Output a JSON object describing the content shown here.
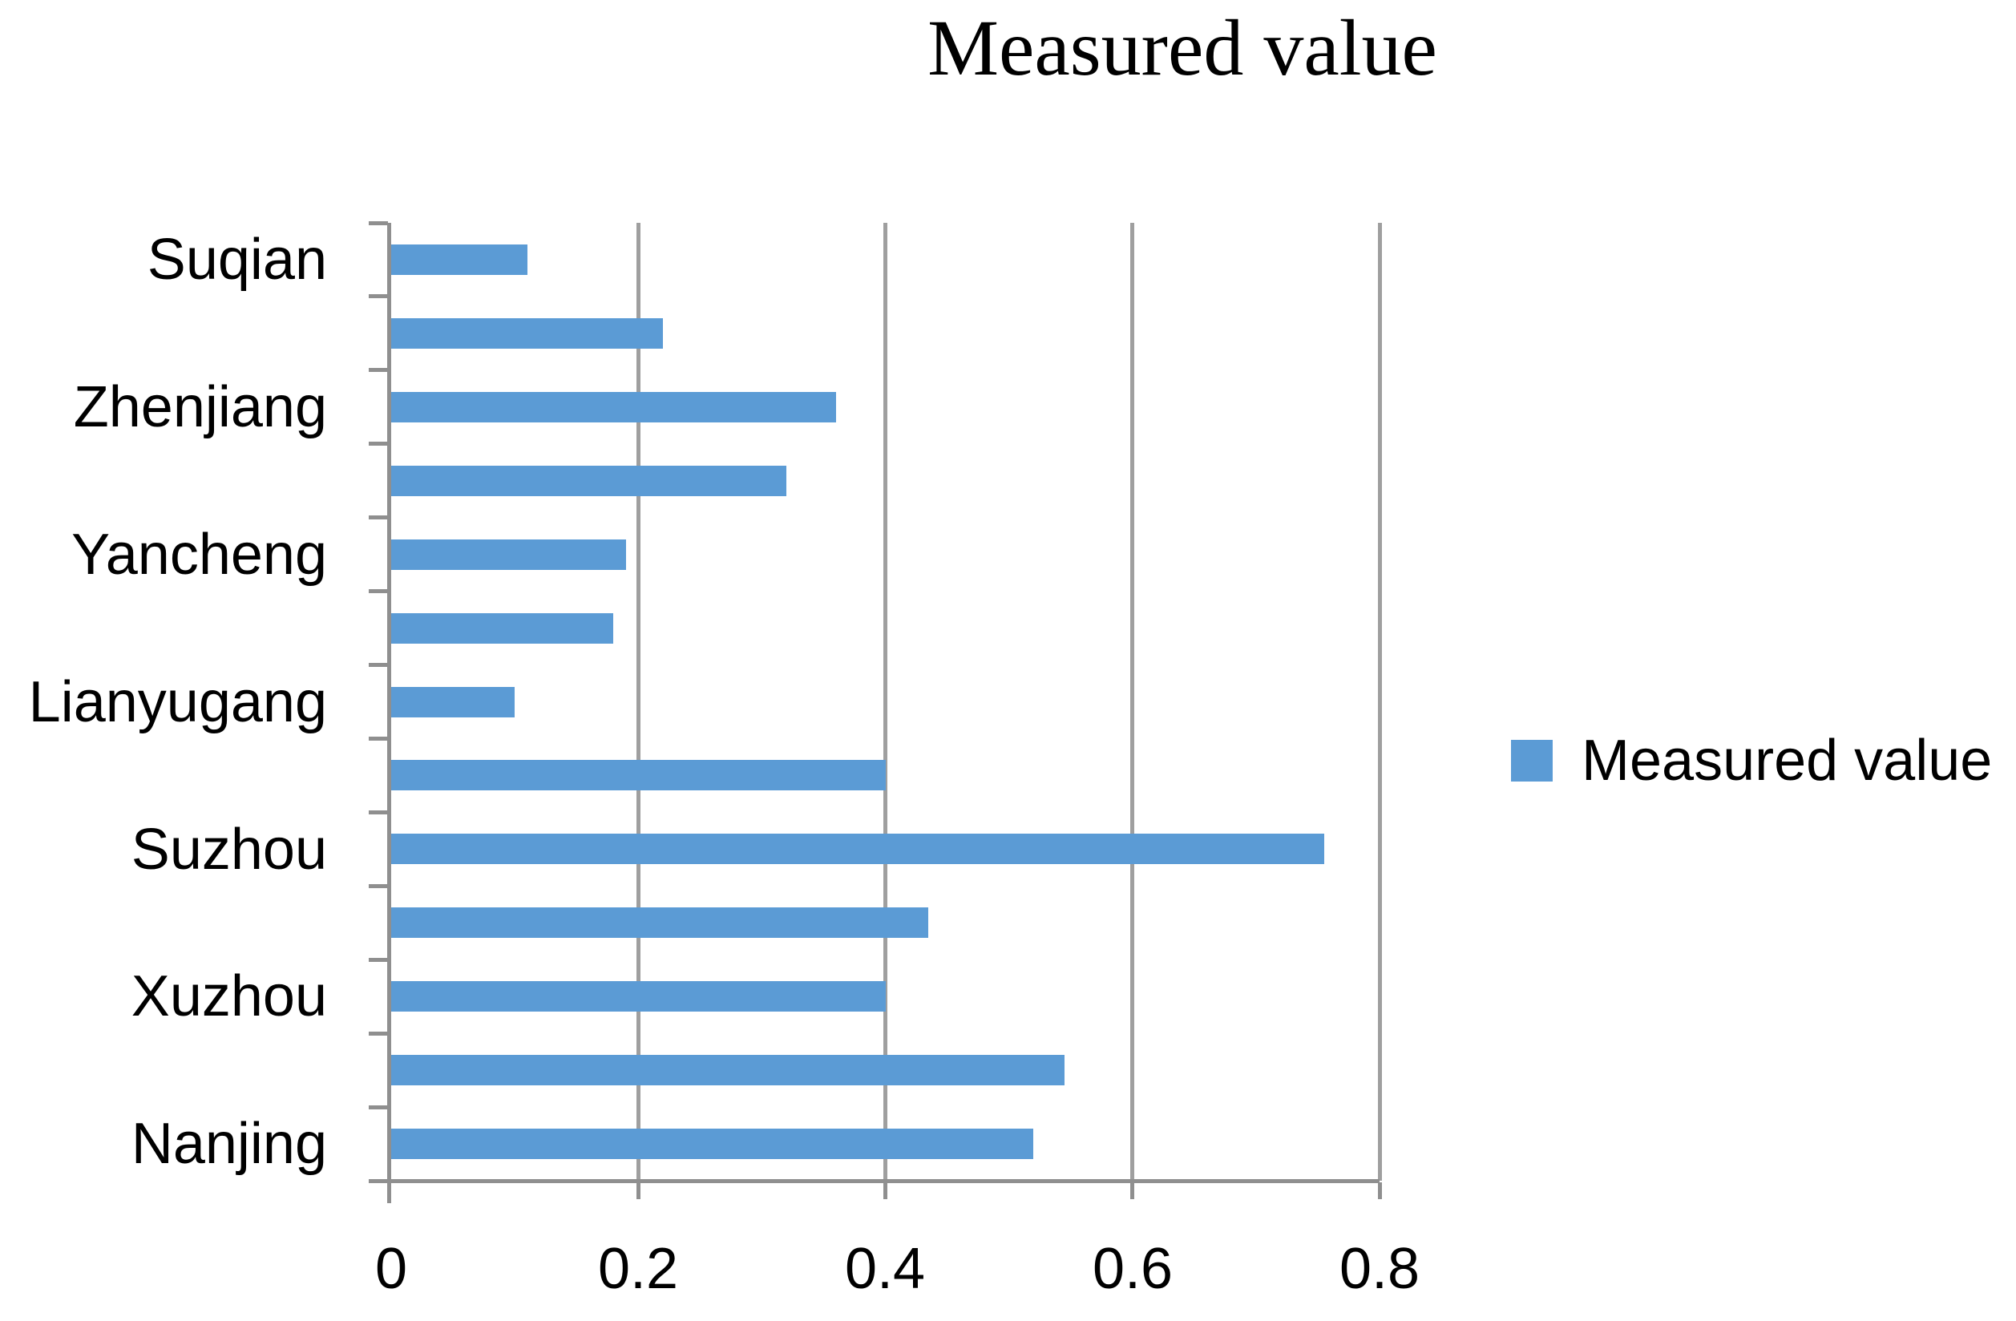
{
  "title": "Measured value",
  "legend": {
    "label": "Measured value",
    "marker_color": "#5B9BD5"
  },
  "x_axis": {
    "tick_labels": [
      "0",
      "0.2",
      "0.4",
      "0.6",
      "0.8"
    ]
  },
  "y_axis": {
    "visible_labels": [
      "Suqian",
      "Zhenjiang",
      "Yancheng",
      "Lianyugang",
      "Suzhou",
      "Xuzhou",
      "Nanjing"
    ]
  },
  "colors": {
    "bar": "#5B9BD5",
    "gridline": "#9F9F9F",
    "axis": "#8F8F8F",
    "text": "#000000",
    "background": "#FFFFFF"
  },
  "chart_data": {
    "type": "bar",
    "orientation": "horizontal",
    "title": "Measured value",
    "xlabel": "",
    "ylabel": "",
    "xlim": [
      0,
      0.8
    ],
    "x_ticks": [
      0,
      0.2,
      0.4,
      0.6,
      0.8
    ],
    "grid": true,
    "legend_entries": [
      "Measured value"
    ],
    "legend_position": "center-right",
    "categories_top_to_bottom": [
      "Suqian",
      "",
      "Zhenjiang",
      "",
      "Yancheng",
      "",
      "Lianyugang",
      "",
      "Suzhou",
      "",
      "Xuzhou",
      "",
      "Nanjing"
    ],
    "values_top_to_bottom": [
      0.11,
      0.22,
      0.36,
      0.32,
      0.19,
      0.18,
      0.1,
      0.4,
      0.755,
      0.435,
      0.4,
      0.545,
      0.52
    ],
    "label_skip_note": "only every other category shows an axis label"
  }
}
